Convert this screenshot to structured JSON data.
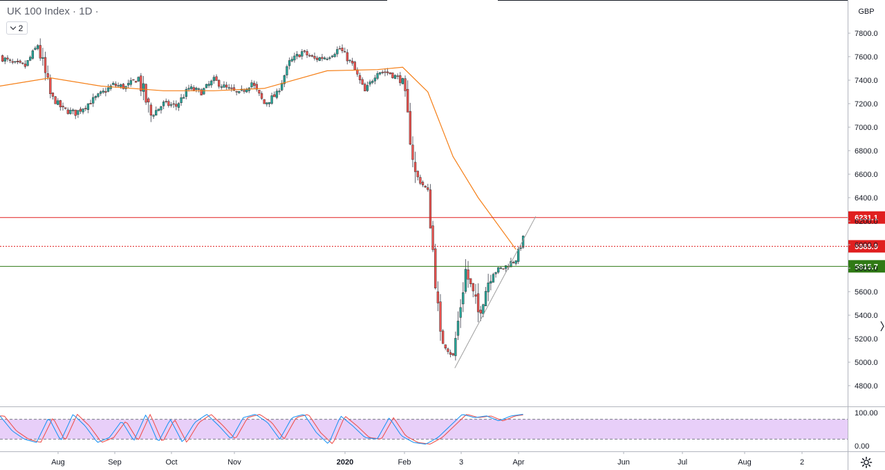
{
  "header": {
    "title": "UK 100 Index · 1D ·",
    "collapse_count": "2"
  },
  "price_axis": {
    "currency": "GBP",
    "ticks": [
      "7800.0",
      "7600.0",
      "7400.0",
      "7200.0",
      "7000.0",
      "6800.0",
      "6600.0",
      "6400.0",
      "6200.0",
      "6000.0",
      "5800.0",
      "5600.0",
      "5400.0",
      "5200.0",
      "5000.0",
      "4800.0"
    ]
  },
  "time_axis": {
    "ticks": [
      "Aug",
      "Sep",
      "Oct",
      "Nov",
      "2020",
      "Feb",
      "3",
      "Apr",
      "Jun",
      "Jul",
      "Aug",
      "2"
    ]
  },
  "price_lines": [
    {
      "label": "6231.1",
      "value": 6231.1,
      "color": "#e01f1f",
      "style": "solid"
    },
    {
      "label": "5985.9",
      "value": 5985.9,
      "color": "#e01f1f",
      "style": "dotted"
    },
    {
      "label": "5815.7",
      "value": 5815.7,
      "color": "#2f7a14",
      "style": "solid"
    }
  ],
  "colors": {
    "up": "#26a69a",
    "down": "#ef5350",
    "wick": "#5d606b",
    "ma": "#f57f17",
    "k_line": "#2196f3",
    "d_line": "#ef5350",
    "band_fill": "#e8cff9"
  },
  "oscillator": {
    "ticks": [
      "100.00",
      "0.00"
    ],
    "upper_band": 80,
    "lower_band": 20
  },
  "chart_data": {
    "type": "candlestick",
    "instrument": "UK 100 Index",
    "timeframe": "1D",
    "currency": "GBP",
    "ylim": [
      4680,
      7950
    ],
    "date_range": [
      "2019-07-08",
      "2020-04-24"
    ],
    "close_path": [
      {
        "date": "2019-07-08",
        "value": 7600
      },
      {
        "date": "2019-07-15",
        "value": 7540
      },
      {
        "date": "2019-07-22",
        "value": 7520
      },
      {
        "date": "2019-07-29",
        "value": 7700
      },
      {
        "date": "2019-08-05",
        "value": 7270
      },
      {
        "date": "2019-08-12",
        "value": 7150
      },
      {
        "date": "2019-08-19",
        "value": 7120
      },
      {
        "date": "2019-08-26",
        "value": 7200
      },
      {
        "date": "2019-09-02",
        "value": 7280
      },
      {
        "date": "2019-09-09",
        "value": 7360
      },
      {
        "date": "2019-09-16",
        "value": 7340
      },
      {
        "date": "2019-09-23",
        "value": 7420
      },
      {
        "date": "2019-09-30",
        "value": 7100
      },
      {
        "date": "2019-10-07",
        "value": 7200
      },
      {
        "date": "2019-10-14",
        "value": 7180
      },
      {
        "date": "2019-10-21",
        "value": 7330
      },
      {
        "date": "2019-10-28",
        "value": 7300
      },
      {
        "date": "2019-11-04",
        "value": 7400
      },
      {
        "date": "2019-11-11",
        "value": 7330
      },
      {
        "date": "2019-11-18",
        "value": 7280
      },
      {
        "date": "2019-11-25",
        "value": 7380
      },
      {
        "date": "2019-12-02",
        "value": 7200
      },
      {
        "date": "2019-12-09",
        "value": 7280
      },
      {
        "date": "2019-12-16",
        "value": 7550
      },
      {
        "date": "2019-12-23",
        "value": 7640
      },
      {
        "date": "2019-12-30",
        "value": 7580
      },
      {
        "date": "2020-01-06",
        "value": 7600
      },
      {
        "date": "2020-01-13",
        "value": 7670
      },
      {
        "date": "2020-01-20",
        "value": 7530
      },
      {
        "date": "2020-01-27",
        "value": 7300
      },
      {
        "date": "2020-02-03",
        "value": 7480
      },
      {
        "date": "2020-02-10",
        "value": 7460
      },
      {
        "date": "2020-02-17",
        "value": 7390
      },
      {
        "date": "2020-02-24",
        "value": 6600
      },
      {
        "date": "2020-03-02",
        "value": 6450
      },
      {
        "date": "2020-03-09",
        "value": 5200
      },
      {
        "date": "2020-03-16",
        "value": 5050
      },
      {
        "date": "2020-03-23",
        "value": 5780
      },
      {
        "date": "2020-03-30",
        "value": 5420
      },
      {
        "date": "2020-04-06",
        "value": 5760
      },
      {
        "date": "2020-04-13",
        "value": 5800
      },
      {
        "date": "2020-04-20",
        "value": 5880
      },
      {
        "date": "2020-04-24",
        "value": 6050
      }
    ],
    "moving_average": [
      {
        "date": "2019-07-08",
        "value": 7350
      },
      {
        "date": "2019-08-05",
        "value": 7420
      },
      {
        "date": "2019-09-02",
        "value": 7350
      },
      {
        "date": "2019-10-07",
        "value": 7310
      },
      {
        "date": "2019-11-04",
        "value": 7310
      },
      {
        "date": "2019-12-02",
        "value": 7330
      },
      {
        "date": "2020-01-06",
        "value": 7480
      },
      {
        "date": "2020-02-03",
        "value": 7490
      },
      {
        "date": "2020-02-17",
        "value": 7510
      },
      {
        "date": "2020-03-02",
        "value": 7300
      },
      {
        "date": "2020-03-16",
        "value": 6750
      },
      {
        "date": "2020-03-30",
        "value": 6400
      },
      {
        "date": "2020-04-20",
        "value": 5960
      }
    ],
    "trendline": {
      "start": {
        "date": "2020-03-17",
        "value": 4950
      },
      "end": {
        "date": "2020-05-01",
        "value": 6240
      }
    },
    "horizontal_levels": [
      6231.1,
      5985.9,
      5815.7
    ],
    "stochastic": {
      "range": [
        0,
        100
      ],
      "bands": [
        20,
        80
      ],
      "k_path": [
        90,
        45,
        20,
        10,
        85,
        15,
        95,
        60,
        10,
        25,
        75,
        15,
        95,
        10,
        80,
        10,
        70,
        95,
        60,
        20,
        85,
        95,
        70,
        20,
        85,
        95,
        40,
        5,
        90,
        60,
        25,
        20,
        85,
        30,
        10,
        5,
        25,
        60,
        95,
        85,
        90,
        75,
        90,
        95
      ]
    }
  }
}
